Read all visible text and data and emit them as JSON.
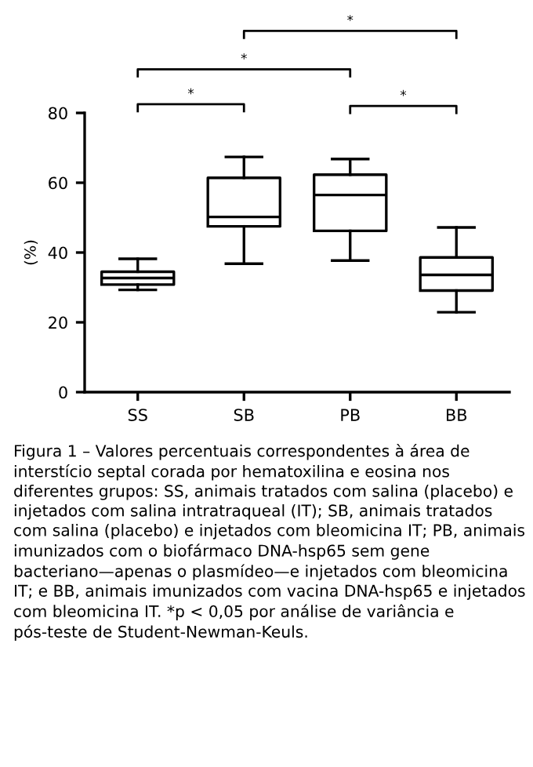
{
  "chart_data": {
    "type": "box",
    "ylabel": "(%)",
    "categories": [
      "SS",
      "SB",
      "PB",
      "BB"
    ],
    "boxes": [
      {
        "low": 29.3,
        "q1": 30.8,
        "median": 32.7,
        "q3": 34.5,
        "high": 38.2
      },
      {
        "low": 36.8,
        "q1": 47.5,
        "median": 50.2,
        "q3": 61.4,
        "high": 67.4
      },
      {
        "low": 37.7,
        "q1": 46.2,
        "median": 56.5,
        "q3": 62.3,
        "high": 66.8
      },
      {
        "low": 22.9,
        "q1": 29.1,
        "median": 33.6,
        "q3": 38.6,
        "high": 47.2
      }
    ],
    "color": "#000000",
    "ylim": [
      0,
      80
    ],
    "yticks": [
      0,
      20,
      40,
      60,
      80
    ],
    "grid": false,
    "legend": false,
    "annotations": [
      "*",
      "*",
      "*",
      "*",
      "Figura 1 – Valores percentuais correspondentes à área de interstício septal corada por hematoxilina e eosina nos diferentes grupos: SS, animais tratados com salina (placebo) e injetados com salina intratraqueal (IT); SB, animais tratados com salina (placebo) e injetados com bleomicina IT; PB, animais imunizados com o biofármaco DNA-hsp65 sem gene bacteriano—apenas o plasmídeo—e injetados com bleomicina IT; e BB, animais imunizados com vacina DNA-hsp65 e injetados com bleomicina IT. *p < 0,05 por análise de variância e pós-teste de Student-Newman-Keuls."
    ]
  }
}
